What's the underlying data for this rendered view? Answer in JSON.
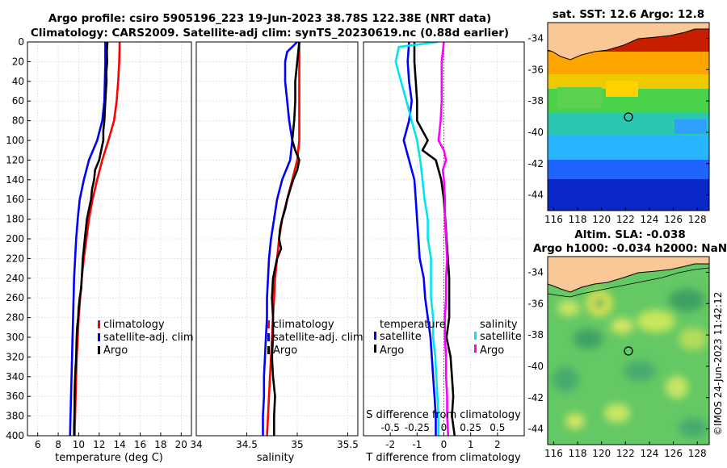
{
  "titles": {
    "line1": "Argo profile: csiro 5905196_223 19-Jun-2023 38.78S 122.38E (NRT data)",
    "line2": "Climatology: CARS2009. Satellite-adj clim: synTS_20230619.nc (0.88d earlier)"
  },
  "colors": {
    "climatology": "#ff0000",
    "satellite": "#0000ff",
    "argo": "#000000",
    "sal_satellite": "#00e5ee",
    "sal_argo": "#ff00ff",
    "land": "#fac896",
    "coast": "#000000"
  },
  "chart_data": [
    {
      "id": "temperature",
      "type": "line",
      "xlabel": "temperature (deg C)",
      "ylabel": "",
      "xlim": [
        5,
        21
      ],
      "ylim": [
        400,
        0
      ],
      "xticks": [
        "6",
        "8",
        "10",
        "12",
        "14",
        "16",
        "18",
        "20"
      ],
      "xtick_values": [
        6,
        8,
        10,
        12,
        14,
        16,
        18,
        20
      ],
      "yticks": [
        "0",
        "20",
        "40",
        "60",
        "80",
        "100",
        "120",
        "140",
        "160",
        "180",
        "200",
        "220",
        "240",
        "260",
        "280",
        "300",
        "320",
        "340",
        "360",
        "380",
        "400"
      ],
      "legend": [
        "climatology",
        "satellite-adj. clim",
        "Argo"
      ],
      "series": [
        {
          "name": "climatology",
          "color_key": "climatology",
          "depth": [
            0,
            20,
            40,
            60,
            80,
            100,
            120,
            140,
            160,
            180,
            200,
            220,
            240,
            260,
            280,
            300,
            320,
            340,
            360,
            380,
            400
          ],
          "values": [
            14.0,
            13.95,
            13.85,
            13.7,
            13.45,
            12.9,
            12.3,
            11.8,
            11.35,
            11.0,
            10.75,
            10.5,
            10.3,
            10.15,
            10.0,
            9.9,
            9.8,
            9.75,
            9.7,
            9.65,
            9.6
          ]
        },
        {
          "name": "satellite-adj. clim",
          "color_key": "satellite",
          "depth": [
            0,
            20,
            40,
            60,
            80,
            100,
            120,
            140,
            160,
            180,
            200,
            220,
            240,
            260,
            280,
            300,
            320,
            340,
            360,
            380,
            400
          ],
          "values": [
            12.6,
            12.6,
            12.55,
            12.5,
            12.3,
            11.8,
            11.0,
            10.5,
            10.1,
            9.9,
            9.75,
            9.65,
            9.55,
            9.5,
            9.45,
            9.4,
            9.35,
            9.3,
            9.25,
            9.2,
            9.15
          ]
        },
        {
          "name": "Argo",
          "color_key": "argo",
          "depth": [
            0,
            10,
            20,
            30,
            40,
            50,
            60,
            70,
            80,
            90,
            100,
            110,
            120,
            130,
            140,
            150,
            160,
            170,
            180,
            190,
            200,
            210,
            220,
            230,
            240,
            250,
            260,
            270,
            280,
            290,
            300,
            310,
            320,
            330,
            340,
            350,
            360,
            370,
            380,
            390,
            400
          ],
          "values": [
            12.8,
            12.75,
            12.78,
            12.7,
            12.72,
            12.65,
            12.6,
            12.55,
            12.5,
            12.4,
            12.4,
            12.2,
            12.0,
            11.6,
            11.5,
            11.3,
            11.2,
            11.0,
            10.8,
            10.7,
            10.6,
            10.5,
            10.4,
            10.35,
            10.3,
            10.25,
            10.1,
            10.0,
            9.95,
            9.85,
            9.8,
            9.78,
            9.75,
            9.7,
            9.65,
            9.62,
            9.6,
            9.6,
            9.58,
            9.55,
            9.55
          ]
        }
      ]
    },
    {
      "id": "salinity",
      "type": "line",
      "xlabel": "salinity",
      "ylabel": "",
      "xlim": [
        34,
        35.6
      ],
      "ylim": [
        400,
        0
      ],
      "xticks": [
        "34",
        "34.5",
        "35",
        "35.5"
      ],
      "xtick_values": [
        34,
        34.5,
        35,
        35.5
      ],
      "legend": [
        "climatology",
        "satellite-adj. clim",
        "Argo"
      ],
      "series": [
        {
          "name": "climatology",
          "color_key": "climatology",
          "depth": [
            0,
            20,
            40,
            60,
            80,
            100,
            120,
            140,
            160,
            180,
            200,
            220,
            240,
            260,
            280,
            300,
            320,
            340,
            360,
            380,
            400
          ],
          "values": [
            35.02,
            35.02,
            35.02,
            35.02,
            35.02,
            35.02,
            35.0,
            34.95,
            34.9,
            34.85,
            34.82,
            34.8,
            34.78,
            34.77,
            34.76,
            34.75,
            34.74,
            34.73,
            34.72,
            34.71,
            34.7
          ]
        },
        {
          "name": "satellite-adj. clim",
          "color_key": "satellite",
          "depth": [
            0,
            5,
            10,
            20,
            40,
            60,
            80,
            100,
            120,
            140,
            160,
            180,
            200,
            220,
            240,
            260,
            280,
            300,
            320,
            340,
            360,
            380,
            400
          ],
          "values": [
            35.0,
            34.95,
            34.9,
            34.88,
            34.88,
            34.9,
            34.92,
            34.95,
            34.93,
            34.85,
            34.8,
            34.77,
            34.74,
            34.72,
            34.71,
            34.7,
            34.7,
            34.69,
            34.68,
            34.67,
            34.67,
            34.66,
            34.66
          ]
        },
        {
          "name": "Argo",
          "color_key": "argo",
          "depth": [
            0,
            20,
            40,
            60,
            80,
            100,
            110,
            120,
            130,
            140,
            150,
            160,
            170,
            180,
            190,
            200,
            210,
            220,
            230,
            240,
            260,
            280,
            300,
            320,
            340,
            360,
            380,
            400
          ],
          "values": [
            35.02,
            35.0,
            34.98,
            34.98,
            34.97,
            34.95,
            34.98,
            35.02,
            35.0,
            34.96,
            34.93,
            34.9,
            34.88,
            34.85,
            34.83,
            34.82,
            34.84,
            34.8,
            34.78,
            34.76,
            34.75,
            34.76,
            34.76,
            34.75,
            34.76,
            34.78,
            34.77,
            34.77
          ]
        }
      ]
    },
    {
      "id": "difference",
      "type": "line",
      "xlabel": "T difference from climatology",
      "xlabel_top": "S difference from climatology",
      "xlim": [
        -3,
        3
      ],
      "ylim": [
        400,
        0
      ],
      "xticks": [
        "-2",
        "-1",
        "0",
        "1",
        "2"
      ],
      "xtick_values": [
        -2,
        -1,
        0,
        1,
        2
      ],
      "s_xticks": [
        "-0.5",
        "-0.25",
        "0",
        "0.25",
        "0.5"
      ],
      "s_xtick_values": [
        -0.5,
        -0.25,
        0,
        0.25,
        0.5
      ],
      "legend_headers": [
        "temperature",
        "salinity"
      ],
      "legend": [
        "satellite",
        "Argo",
        "satellite",
        "Argo"
      ],
      "series": [
        {
          "name": "temperature satellite",
          "color_key": "satellite",
          "depth": [
            0,
            20,
            40,
            60,
            80,
            100,
            120,
            140,
            160,
            180,
            200,
            220,
            240,
            260,
            280,
            300,
            320,
            340,
            360,
            380,
            400
          ],
          "values": [
            -1.3,
            -1.35,
            -1.3,
            -1.2,
            -1.3,
            -1.5,
            -1.3,
            -1.1,
            -1.05,
            -1.0,
            -0.95,
            -0.9,
            -0.75,
            -0.7,
            -0.6,
            -0.5,
            -0.45,
            -0.4,
            -0.35,
            -0.3,
            -0.3
          ]
        },
        {
          "name": "temperature Argo",
          "color_key": "argo",
          "depth": [
            0,
            20,
            40,
            60,
            80,
            100,
            110,
            120,
            130,
            140,
            160,
            180,
            200,
            220,
            240,
            260,
            280,
            300,
            320,
            340,
            360,
            380,
            400
          ],
          "values": [
            -1.1,
            -1.1,
            -1.05,
            -1.0,
            -1.0,
            -0.6,
            -0.8,
            -0.3,
            -0.2,
            -0.1,
            0.0,
            0.05,
            0.1,
            0.15,
            0.2,
            0.2,
            0.2,
            0.1,
            0.25,
            0.3,
            0.35,
            0.3,
            0.4
          ]
        },
        {
          "name": "salinity satellite",
          "color_key": "sal_satellite",
          "depth": [
            0,
            5,
            20,
            40,
            60,
            80,
            100,
            120,
            140,
            160,
            180,
            200,
            220,
            240,
            260,
            280,
            300,
            320,
            340,
            360,
            380,
            400
          ],
          "values": [
            -0.06,
            -0.42,
            -0.45,
            -0.4,
            -0.35,
            -0.3,
            -0.25,
            -0.22,
            -0.2,
            -0.18,
            -0.15,
            -0.15,
            -0.12,
            -0.12,
            -0.12,
            -0.1,
            -0.1,
            -0.08,
            -0.07,
            -0.06,
            -0.05,
            -0.05
          ]
        },
        {
          "name": "salinity Argo",
          "color_key": "sal_argo",
          "depth": [
            0,
            20,
            40,
            60,
            80,
            100,
            110,
            120,
            130,
            140,
            160,
            180,
            200,
            220,
            240,
            260,
            280,
            300,
            320,
            340,
            360,
            380,
            400
          ],
          "values": [
            0.0,
            -0.02,
            -0.02,
            -0.02,
            -0.03,
            -0.05,
            0.0,
            0.02,
            -0.01,
            0.0,
            0.01,
            0.01,
            0.02,
            0.03,
            0.02,
            0.02,
            0.01,
            0.01,
            0.02,
            0.02,
            0.03,
            0.03,
            0.04
          ]
        }
      ]
    },
    {
      "id": "sst_map",
      "type": "heatmap",
      "title": "sat. SST: 12.6 Argo: 12.8",
      "xlim": [
        115.5,
        129
      ],
      "ylim": [
        -45,
        -33
      ],
      "xticks": [
        "116",
        "118",
        "120",
        "122",
        "124",
        "126",
        "128"
      ],
      "xtick_values": [
        116,
        118,
        120,
        122,
        124,
        126,
        128
      ],
      "yticks": [
        "-34",
        "-36",
        "-38",
        "-40",
        "-42",
        "-44"
      ],
      "ytick_values": [
        -34,
        -36,
        -38,
        -40,
        -42,
        -44
      ],
      "profile_location": [
        122.38,
        -38.78
      ]
    },
    {
      "id": "sla_map",
      "type": "heatmap",
      "title": "Altim. SLA: -0.038",
      "subtitle": "Argo h1000: -0.034 h2000: NaN",
      "xlim": [
        115.5,
        129
      ],
      "ylim": [
        -45,
        -33
      ],
      "xticks": [
        "116",
        "118",
        "120",
        "122",
        "124",
        "126",
        "128"
      ],
      "xtick_values": [
        116,
        118,
        120,
        122,
        124,
        126,
        128
      ],
      "yticks": [
        "-34",
        "-36",
        "-38",
        "-40",
        "-42",
        "-44"
      ],
      "ytick_values": [
        -34,
        -36,
        -38,
        -40,
        -42,
        -44
      ],
      "profile_location": [
        122.38,
        -38.78
      ]
    }
  ],
  "watermark": "©IMOS 24-Jun-2023 11:42:12"
}
